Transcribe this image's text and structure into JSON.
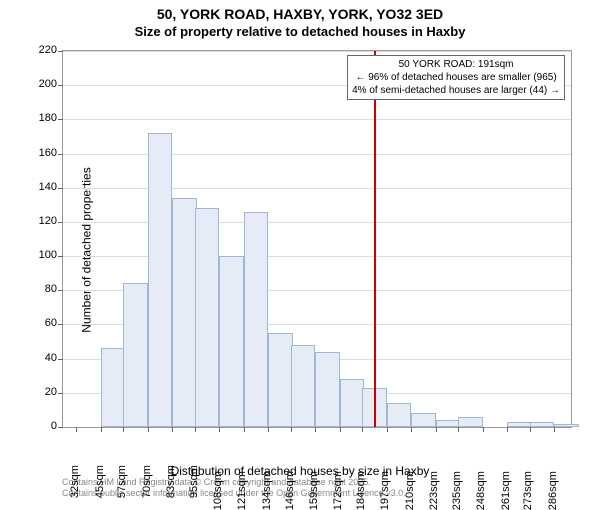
{
  "title_line1": "50, YORK ROAD, HAXBY, YORK, YO32 3ED",
  "title_line2": "Size of property relative to detached houses in Haxby",
  "chart": {
    "type": "histogram",
    "ylabel": "Number of detached properties",
    "xlabel": "Distribution of detached houses by size in Haxby",
    "ylim": [
      0,
      220
    ],
    "ytick_step": 20,
    "x_min": 25,
    "x_max": 295,
    "bin_width_sqm": 13,
    "xtick_values": [
      32,
      45,
      57,
      70,
      83,
      95,
      108,
      121,
      134,
      146,
      159,
      172,
      184,
      197,
      210,
      223,
      235,
      248,
      261,
      273,
      286
    ],
    "xtick_suffix": "sqm",
    "bar_color": "#e5ecf6",
    "bar_border_color": "#9fb6d4",
    "grid_color": "#dddddd",
    "background_color": "#ffffff",
    "axis_color": "#999999",
    "bars": [
      {
        "x_start": 32,
        "value": 0
      },
      {
        "x_start": 45,
        "value": 46
      },
      {
        "x_start": 57,
        "value": 84
      },
      {
        "x_start": 70,
        "value": 172
      },
      {
        "x_start": 83,
        "value": 134
      },
      {
        "x_start": 95,
        "value": 128
      },
      {
        "x_start": 108,
        "value": 100
      },
      {
        "x_start": 121,
        "value": 126
      },
      {
        "x_start": 134,
        "value": 55
      },
      {
        "x_start": 146,
        "value": 48
      },
      {
        "x_start": 159,
        "value": 44
      },
      {
        "x_start": 172,
        "value": 28
      },
      {
        "x_start": 184,
        "value": 23
      },
      {
        "x_start": 197,
        "value": 14
      },
      {
        "x_start": 210,
        "value": 8
      },
      {
        "x_start": 223,
        "value": 4
      },
      {
        "x_start": 235,
        "value": 6
      },
      {
        "x_start": 248,
        "value": 0
      },
      {
        "x_start": 261,
        "value": 3
      },
      {
        "x_start": 273,
        "value": 3
      },
      {
        "x_start": 286,
        "value": 2
      }
    ],
    "indicator": {
      "x_value": 191,
      "color": "#cc0000"
    },
    "annotation": {
      "line1": "50 YORK ROAD: 191sqm",
      "line2": "← 96% of detached houses are smaller (965)",
      "line3": "4% of semi-detached houses are larger (44) →"
    }
  },
  "attribution": {
    "line1": "Contains HM Land Registry data © Crown copyright and database right 2025.",
    "line2": "Contains public sector information licensed under the Open Government Licence v3.0."
  }
}
